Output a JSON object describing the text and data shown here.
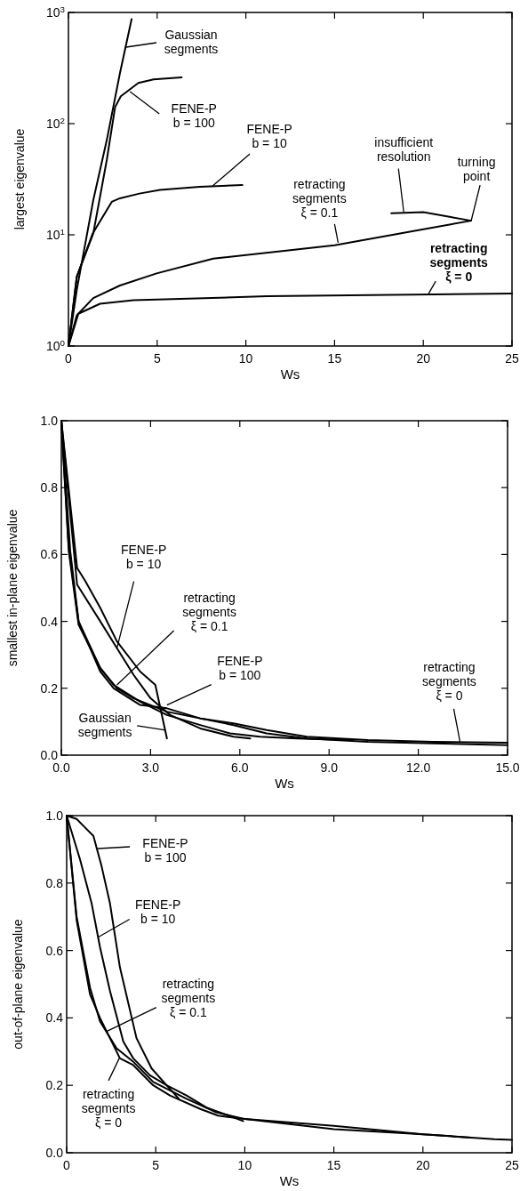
{
  "chart_data": [
    {
      "type": "line",
      "xlabel": "Ws",
      "ylabel": "largest eigenvalue",
      "log": "y",
      "xlim": [
        0,
        25
      ],
      "ylim": [
        1,
        1000
      ],
      "xticks": [
        0,
        5,
        10,
        15,
        20,
        25
      ],
      "yticks": [
        {
          "value": 1,
          "label": "10$^{0}$"
        },
        {
          "value": 10,
          "label": "10$^{1}$"
        },
        {
          "value": 100,
          "label": "10$^{2}$"
        },
        {
          "value": 1000,
          "label": "10$^{3}$"
        }
      ],
      "grid": false,
      "legend": false,
      "marker": "none",
      "line_style": "solid",
      "series": [
        {
          "color": "#000000",
          "x": [
            0,
            0.47,
            1.4,
            2.16,
            2.9,
            3.56
          ],
          "values": [
            1,
            3.2,
            20.5,
            71,
            283,
            870
          ]
        },
        {
          "color": "#000000",
          "x": [
            0,
            0.47,
            1.4,
            2.16,
            2.63,
            2.95,
            3.94,
            4.8,
            6.38
          ],
          "values": [
            1,
            4.2,
            10.3,
            47,
            141,
            176,
            232,
            250,
            261
          ]
        },
        {
          "color": "#000000",
          "x": [
            0,
            0.47,
            1.37,
            2.44,
            2.9,
            4.0,
            5.16,
            7.4,
            9.8
          ],
          "values": [
            1,
            4.2,
            10.3,
            19.8,
            21.3,
            23.5,
            25.3,
            27,
            28
          ]
        },
        {
          "color": "#000000",
          "x": [
            0,
            0.47,
            1.4,
            2.9,
            4.97,
            8.16,
            15,
            22.7,
            20,
            18.2
          ],
          "values": [
            1,
            1.89,
            2.7,
            3.5,
            4.5,
            6.1,
            8.07,
            13.4,
            16,
            15.6
          ]
        },
        {
          "color": "#000000",
          "x": [
            0,
            0.56,
            1.78,
            3.66,
            11.2,
            25
          ],
          "values": [
            1,
            1.95,
            2.4,
            2.58,
            2.8,
            2.96
          ]
        }
      ],
      "annotations": [
        "Gaussian\nsegments",
        {
          "text": "FENE-P\nb = 100",
          "x": 3.47,
          "y": 194
        },
        {
          "text": "FENE-P\nb = 10",
          "x": 8.07,
          "y": 27
        },
        {
          "text": "retracting\nsegments\nξ = 0.1",
          "x": 15.2,
          "y": 8.5
        },
        {
          "text": "insufficient\nresolution",
          "x": 18.9,
          "y": 16
        },
        {
          "text": "turning\npoint",
          "x": 22.7,
          "y": 13.4
        },
        {
          "text": "retracting\nsegments\nξ = 0",
          "x": 20.3,
          "y": 2.96
        }
      ]
    },
    {
      "type": "line",
      "xlabel": "Ws",
      "ylabel": "smallest in-plane eigenvalue",
      "xlim": [
        0,
        15
      ],
      "ylim": [
        0,
        1
      ],
      "xticks": [
        {
          "value": 0,
          "label": "0.0"
        },
        {
          "value": 3,
          "label": "3.0"
        },
        {
          "value": 6,
          "label": "6.0"
        },
        {
          "value": 9,
          "label": "9.0"
        },
        {
          "value": 12,
          "label": "12.0"
        },
        {
          "value": 15,
          "label": "15.0"
        }
      ],
      "yticks": [
        {
          "value": 0,
          "label": "0.0"
        },
        {
          "value": 0.2,
          "label": "0.2"
        },
        {
          "value": 0.4,
          "label": "0.4"
        },
        {
          "value": 0.6,
          "label": "0.6"
        },
        {
          "value": 0.8,
          "label": "0.8"
        },
        {
          "value": 1,
          "label": "1.0"
        }
      ],
      "grid": false,
      "legend": false,
      "marker": "none",
      "line_style": "solid",
      "series": [
        {
          "color": "#000000",
          "x": [
            0,
            0.53,
            0.81,
            1.31,
            1.87,
            2.65,
            3.16,
            3.55
          ],
          "values": [
            1,
            0.56,
            0.52,
            0.44,
            0.34,
            0.25,
            0.21,
            0.05
          ]
        },
        {
          "color": "#000000",
          "x": [
            0,
            0.53,
            1.31,
            1.87,
            2.43,
            3.0,
            3.66,
            4.67,
            5.79,
            6.35
          ],
          "values": [
            1,
            0.51,
            0.4,
            0.32,
            0.24,
            0.17,
            0.12,
            0.08,
            0.055,
            0.05
          ]
        },
        {
          "color": "#000000",
          "x": [
            0,
            0.25,
            0.58,
            1.31,
            1.76,
            2.65,
            3.55,
            4.67,
            5.67,
            6.67,
            7.91,
            9.8
          ],
          "values": [
            1,
            0.61,
            0.39,
            0.26,
            0.21,
            0.16,
            0.12,
            0.09,
            0.065,
            0.055,
            0.05,
            0.045
          ]
        },
        {
          "color": "#000000",
          "x": [
            0,
            0.25,
            0.58,
            1.31,
            1.76,
            2.65,
            3.55,
            4.67,
            5.79,
            6.9,
            8.25,
            10.3,
            12.5,
            15
          ],
          "values": [
            1,
            0.62,
            0.4,
            0.25,
            0.2,
            0.15,
            0.14,
            0.11,
            0.09,
            0.065,
            0.05,
            0.04,
            0.035,
            0.03
          ]
        },
        {
          "color": "#000000",
          "x": [
            0,
            0.3,
            0.58,
            1.31,
            1.87,
            2.43,
            3.55,
            4.67,
            5.79,
            6.9,
            8.25,
            10.3,
            12.5,
            15
          ],
          "values": [
            1,
            0.61,
            0.4,
            0.26,
            0.2,
            0.17,
            0.13,
            0.11,
            0.095,
            0.075,
            0.055,
            0.045,
            0.04,
            0.037
          ]
        }
      ],
      "annotations": [
        {
          "text": "FENE-P\nb = 10",
          "x": 1.87,
          "y": 0.32
        },
        {
          "text": "retracting\nsegments\nξ = 0.1",
          "x": 1.87,
          "y": 0.21
        },
        {
          "text": "FENE-P\nb = 100",
          "x": 3.55,
          "y": 0.15
        },
        {
          "text": "Gaussian\nsegments",
          "x": 3.5,
          "y": 0.075
        },
        {
          "text": "retracting\nsegments\nξ = 0",
          "x": 13.4,
          "y": 0.04
        }
      ]
    },
    {
      "type": "line",
      "xlabel": "Ws",
      "ylabel": "out-of-plane eigenvalue",
      "xlim": [
        0,
        25
      ],
      "ylim": [
        0,
        1
      ],
      "xticks": [
        0,
        5,
        10,
        15,
        20,
        25
      ],
      "yticks": [
        {
          "value": 0,
          "label": "0.0"
        },
        {
          "value": 0.2,
          "label": "0.2"
        },
        {
          "value": 0.4,
          "label": "0.4"
        },
        {
          "value": 0.6,
          "label": "0.6"
        },
        {
          "value": 0.8,
          "label": "0.8"
        },
        {
          "value": 1,
          "label": "1.0"
        }
      ],
      "grid": false,
      "legend": false,
      "marker": "none",
      "line_style": "solid",
      "series": [
        {
          "color": "#000000",
          "x": [
            0,
            0.56,
            1.12,
            1.5,
            1.96,
            2.43,
            2.99,
            3.92,
            4.77,
            5.61,
            6.3
          ],
          "values": [
            1,
            0.99,
            0.96,
            0.94,
            0.85,
            0.74,
            0.55,
            0.34,
            0.25,
            0.2,
            0.16
          ]
        },
        {
          "color": "#000000",
          "x": [
            0,
            0.75,
            1.4,
            1.87,
            2.43,
            3.18,
            3.74,
            4.67,
            5.61,
            6.73,
            7.85,
            9.91
          ],
          "values": [
            1,
            0.87,
            0.74,
            0.61,
            0.48,
            0.33,
            0.28,
            0.23,
            0.2,
            0.17,
            0.134,
            0.094
          ]
        },
        {
          "color": "#000000",
          "x": [
            0,
            0.56,
            1.31,
            1.87,
            2.8,
            3.74,
            4.86,
            6.73,
            8.4,
            10,
            15,
            20,
            22.7
          ],
          "values": [
            1,
            0.7,
            0.49,
            0.39,
            0.31,
            0.27,
            0.21,
            0.16,
            0.12,
            0.1,
            0.08,
            0.055,
            0.045
          ]
        },
        {
          "color": "#000000",
          "x": [
            0,
            0.56,
            1.31,
            1.87,
            2.99,
            3.74,
            4.86,
            5.8,
            7.5,
            8.5,
            10,
            15,
            20,
            24,
            25
          ],
          "values": [
            1,
            0.69,
            0.47,
            0.4,
            0.28,
            0.26,
            0.2,
            0.17,
            0.13,
            0.11,
            0.1,
            0.07,
            0.055,
            0.04,
            0.038
          ]
        }
      ],
      "annotations": [
        "FENE-P\nb = 100",
        {
          "text": "FENE-P\nb = 10",
          "x": 1.78,
          "y": 0.64
        },
        {
          "text": "retracting\nsegments\nξ = 0.1",
          "x": 2.24,
          "y": 0.36
        },
        {
          "text": "retracting\nsegments\nξ = 0",
          "x": 2.95,
          "y": 0.28
        }
      ]
    }
  ]
}
